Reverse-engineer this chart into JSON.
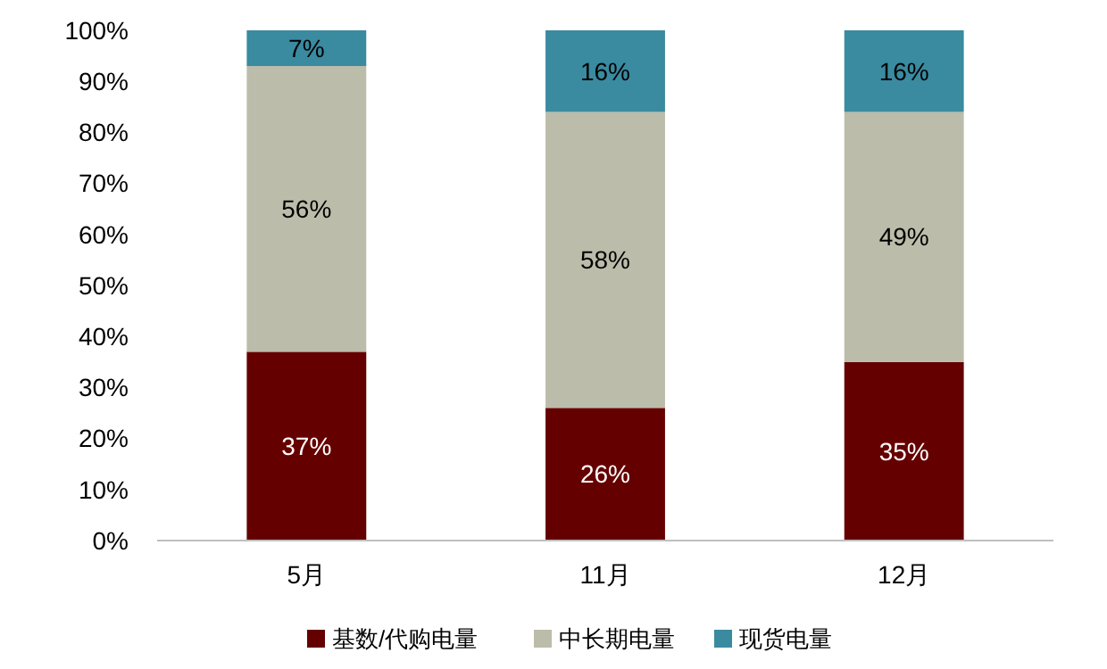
{
  "chart_data": {
    "type": "bar",
    "stacked": true,
    "categories": [
      "5月",
      "11月",
      "12月"
    ],
    "series": [
      {
        "name": "基数/代购电量",
        "color": "#650000",
        "values": [
          37,
          26,
          35
        ],
        "value_labels": [
          "37%",
          "26%",
          "35%"
        ]
      },
      {
        "name": "中长期电量",
        "color": "#bcbcaa",
        "values": [
          56,
          58,
          49
        ],
        "value_labels": [
          "56%",
          "58%",
          "49%"
        ]
      },
      {
        "name": "现货电量",
        "color": "#3a8aa0",
        "values": [
          7,
          16,
          16
        ],
        "value_labels": [
          "7%",
          "16%",
          "16%"
        ]
      }
    ],
    "ylim": [
      0,
      100
    ],
    "yticks": [
      {
        "value": 0,
        "label": "0%"
      },
      {
        "value": 10,
        "label": "10%"
      },
      {
        "value": 20,
        "label": "20%"
      },
      {
        "value": 30,
        "label": "30%"
      },
      {
        "value": 40,
        "label": "40%"
      },
      {
        "value": 50,
        "label": "50%"
      },
      {
        "value": 60,
        "label": "60%"
      },
      {
        "value": 70,
        "label": "70%"
      },
      {
        "value": 80,
        "label": "80%"
      },
      {
        "value": 90,
        "label": "90%"
      },
      {
        "value": 100,
        "label": "100%"
      }
    ],
    "grid": false,
    "legend": "bottom"
  }
}
